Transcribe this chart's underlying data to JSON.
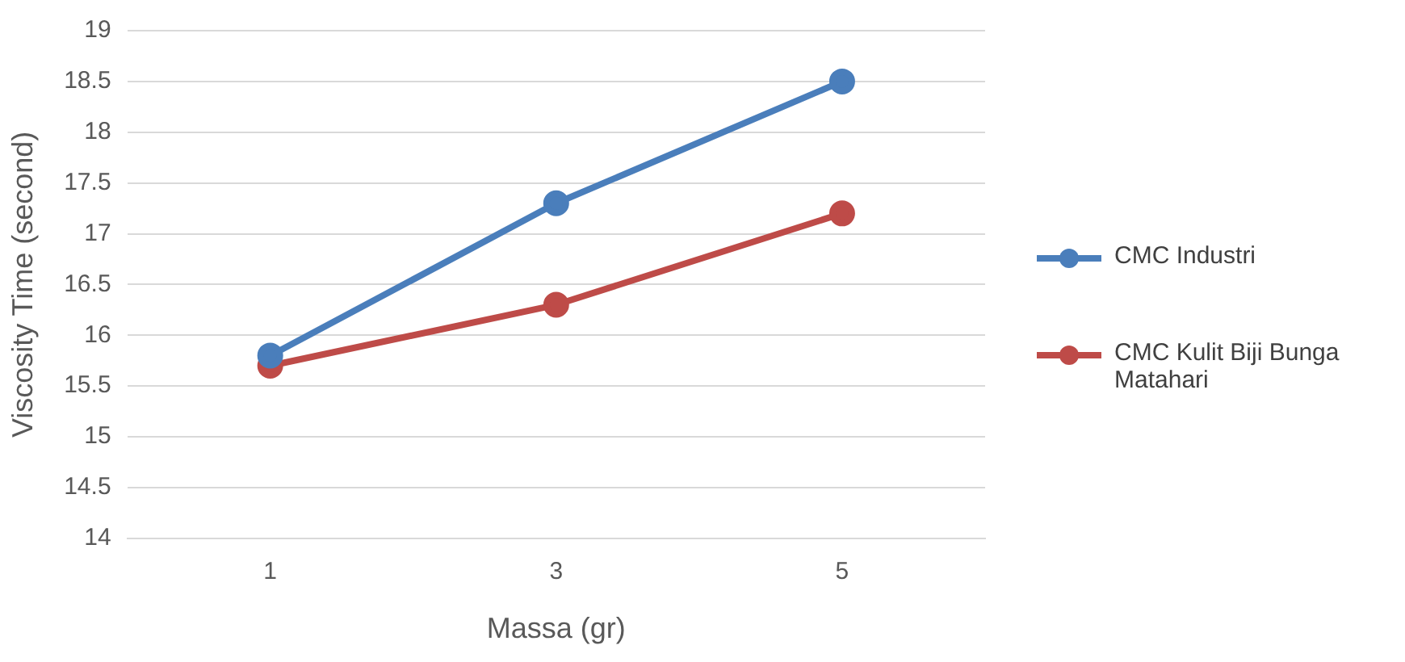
{
  "chart_data": {
    "type": "line",
    "xlabel": "Massa (gr)",
    "ylabel": "Viscosity Time (second)",
    "categories": [
      "1",
      "3",
      "5"
    ],
    "series": [
      {
        "name": "CMC Industri",
        "color": "#4a7ebb",
        "values": [
          15.8,
          17.3,
          18.5
        ]
      },
      {
        "name": "CMC Kulit Biji Bunga Matahari",
        "color": "#be4b48",
        "values": [
          15.7,
          16.3,
          17.2
        ]
      }
    ],
    "ylim": [
      14,
      19
    ],
    "yticks": [
      14,
      14.5,
      15,
      15.5,
      16,
      16.5,
      17,
      17.5,
      18,
      18.5,
      19
    ],
    "grid": "y",
    "legend": "right",
    "marker": "circle",
    "line_style": "solid"
  }
}
